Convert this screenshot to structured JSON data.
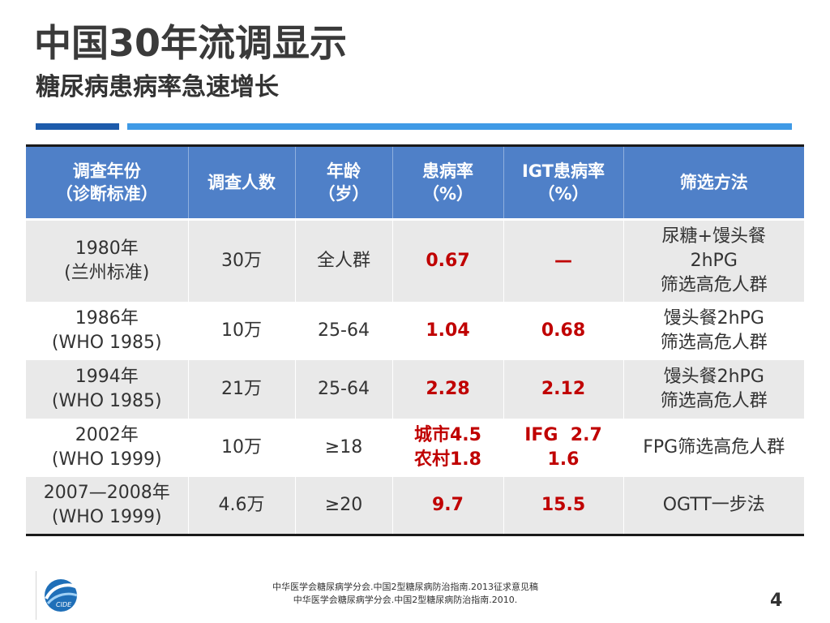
{
  "slide": {
    "title": "中国30年流调显示",
    "subtitle": "糖尿病患病率急速增长",
    "page_number": "4",
    "logo_text": "CIDE",
    "footnotes": [
      "中华医学会糖尿病学分会.中国2型糖尿病防治指南.2013征求意见稿",
      "中华医学会糖尿病学分会.中国2型糖尿病防治指南.2010."
    ]
  },
  "table": {
    "headers": [
      [
        "调查年份",
        "（诊断标准）"
      ],
      [
        "调查人数"
      ],
      [
        "年龄",
        "（岁）"
      ],
      [
        "患病率",
        "（%）"
      ],
      [
        "IGT患病率",
        "（%）"
      ],
      [
        "筛选方法"
      ]
    ],
    "rows": [
      {
        "year": [
          "1980年",
          "(兰州标准)"
        ],
        "count": "30万",
        "age": "全人群",
        "prevalence": [
          "0.67"
        ],
        "igt": [
          "—"
        ],
        "method": [
          "尿糖+馒头餐",
          "2hPG",
          "筛选高危人群"
        ]
      },
      {
        "year": [
          "1986年",
          "(WHO 1985)"
        ],
        "count": "10万",
        "age": "25-64",
        "prevalence": [
          "1.04"
        ],
        "igt": [
          "0.68"
        ],
        "method": [
          "馒头餐2hPG",
          "筛选高危人群"
        ]
      },
      {
        "year": [
          "1994年",
          "(WHO 1985)"
        ],
        "count": "21万",
        "age": "25-64",
        "prevalence": [
          "2.28"
        ],
        "igt": [
          "2.12"
        ],
        "method": [
          "馒头餐2hPG",
          "筛选高危人群"
        ]
      },
      {
        "year": [
          "2002年",
          "(WHO 1999)"
        ],
        "count": "10万",
        "age": "≥18",
        "prevalence": [
          "城市4.5",
          "农村1.8"
        ],
        "igt": [
          "IFG  2.7",
          "1.6"
        ],
        "method": [
          "FPG筛选高危人群"
        ]
      },
      {
        "year": [
          "2007—2008年",
          "(WHO 1999)"
        ],
        "count": "4.6万",
        "age": "≥20",
        "prevalence": [
          "9.7"
        ],
        "igt": [
          "15.5"
        ],
        "method": [
          "OGTT一步法"
        ]
      }
    ]
  },
  "colors": {
    "header_bg": "#4f80c8",
    "accent_red": "#c00000",
    "bar_dark": "#1d5bab",
    "bar_light": "#3f9ae6",
    "row_shade": "#e9e9e9"
  }
}
